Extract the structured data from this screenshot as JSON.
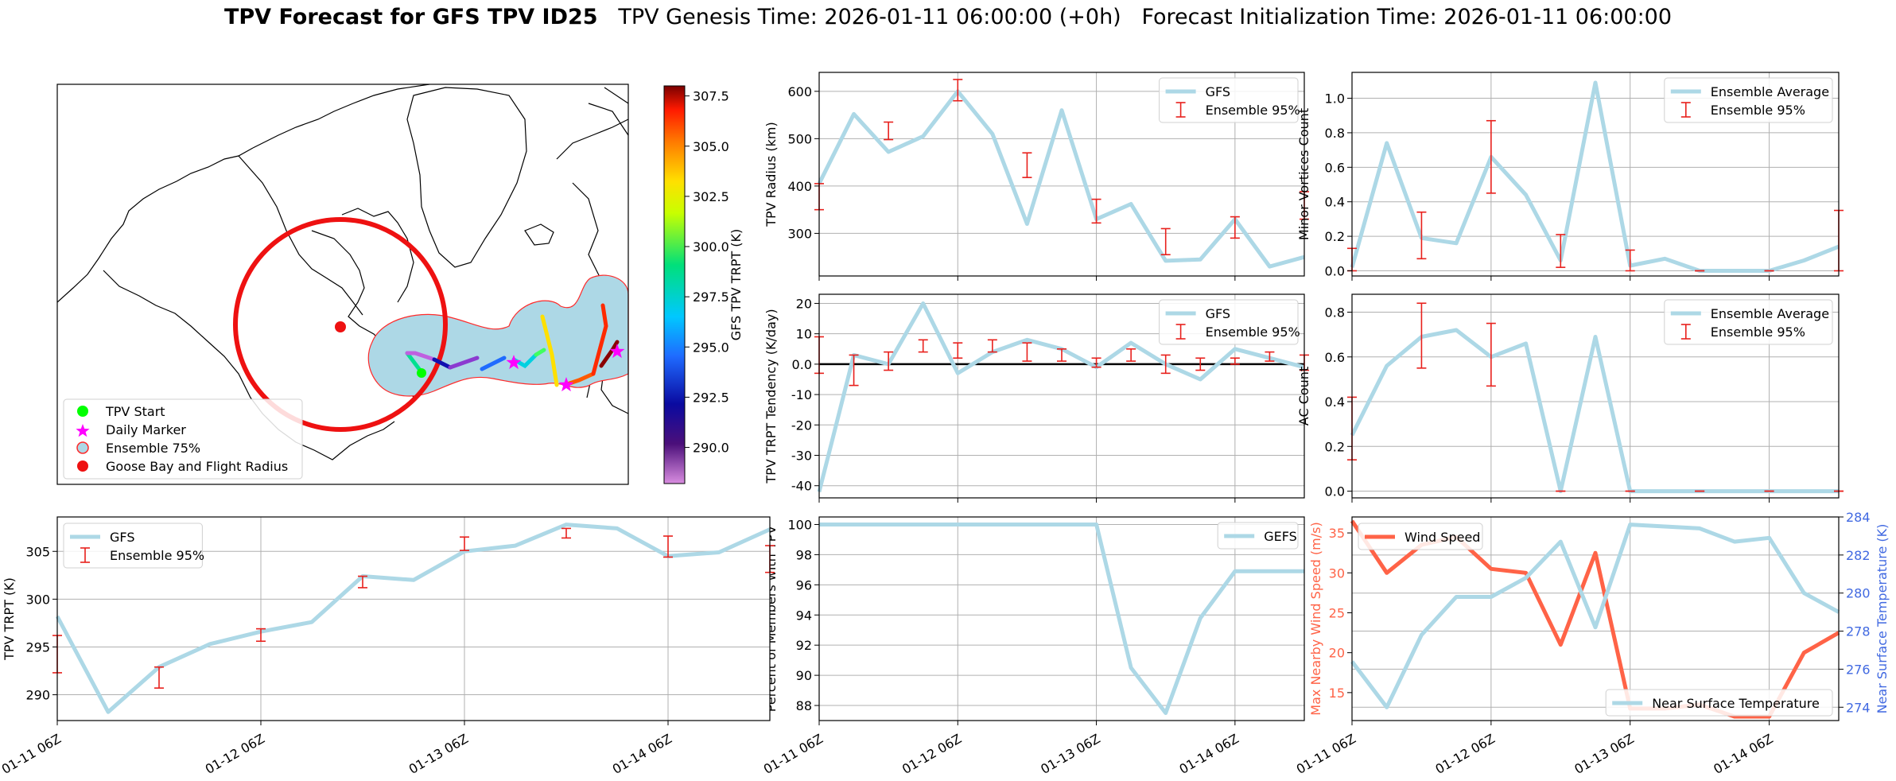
{
  "figure": {
    "title_bold": "TPV Forecast for GFS TPV ID25",
    "title_rest": "   TPV Genesis Time: 2026-01-11 06:00:00 (+0h)   Forecast Initialization Time: 2026-01-11 06:00:00"
  },
  "map": {
    "legend": [
      "TPV Start",
      "Daily Marker",
      "Ensemble 75%",
      "Goose Bay and Flight Radius"
    ],
    "colorbar": {
      "label": "GFS TPV TRPT (K)",
      "ticks": [
        290.0,
        292.5,
        295.0,
        297.5,
        300.0,
        302.5,
        305.0,
        307.5
      ],
      "vmin": 288.2,
      "vmax": 308.0
    },
    "colors": {
      "start": "#00ff00",
      "daily": "#ff00ff",
      "ensemble_fill": "#add8e6",
      "ensemble_edge": "#ff2a2a",
      "goose_bay": "#ee1111"
    }
  },
  "chart_data": [
    {
      "id": "radius",
      "type": "line",
      "ylabel": "TPV Radius (km)",
      "x": [
        0,
        0.25,
        0.5,
        0.75,
        1,
        1.25,
        1.5,
        1.75,
        2,
        2.25,
        2.5,
        2.75,
        3,
        3.25,
        3.5
      ],
      "series": [
        {
          "name": "GFS",
          "values": [
            405,
            552,
            472,
            505,
            600,
            510,
            320,
            560,
            330,
            362,
            242,
            245,
            330,
            230,
            250
          ]
        }
      ],
      "errorbars": {
        "name": "Ensemble 95%",
        "x": [
          0,
          0.5,
          1,
          1.5,
          2,
          2.5,
          3,
          3.5
        ],
        "low": [
          350,
          498,
          580,
          418,
          322,
          255,
          290,
          330
        ],
        "high": [
          405,
          535,
          625,
          470,
          372,
          310,
          335,
          388
        ]
      },
      "ylim": [
        210,
        640
      ],
      "yticks": [
        300,
        400,
        500,
        600
      ],
      "ygrid": [
        300,
        400,
        500,
        600
      ],
      "xlim": [
        0,
        3.5
      ],
      "legend": "upper right"
    },
    {
      "id": "tendency",
      "type": "line",
      "ylabel": "TPV TRPT Tendency (K/day)",
      "x": [
        0,
        0.25,
        0.5,
        0.75,
        1,
        1.25,
        1.5,
        1.75,
        2,
        2.25,
        2.5,
        2.75,
        3,
        3.25,
        3.5
      ],
      "series": [
        {
          "name": "GFS",
          "values": [
            -42,
            3,
            0,
            20,
            -3,
            4,
            8,
            5,
            -1,
            7,
            0,
            -5,
            5,
            2,
            -1
          ]
        }
      ],
      "errorbars": {
        "name": "Ensemble 95%",
        "x": [
          0,
          0.25,
          0.5,
          0.75,
          1,
          1.25,
          1.5,
          1.75,
          2,
          2.25,
          2.5,
          2.75,
          3,
          3.25,
          3.5
        ],
        "low": [
          -3,
          -7,
          -2,
          4,
          2,
          4,
          1,
          1,
          -1,
          1,
          -3,
          -2,
          0,
          1,
          -2
        ],
        "high": [
          9,
          3,
          4,
          8,
          7,
          8,
          7,
          5,
          2,
          5,
          3,
          2,
          2,
          4,
          3
        ]
      },
      "ylim": [
        -44,
        23
      ],
      "yticks": [
        -40,
        -30,
        -20,
        -10,
        0,
        10,
        20
      ],
      "ygrid": [
        -40,
        -30,
        -20,
        -10,
        0,
        10,
        20
      ],
      "zero_line": true,
      "xlim": [
        0,
        3.5
      ],
      "legend": "upper right"
    },
    {
      "id": "members",
      "type": "line",
      "ylabel": "Percent of Members with TPV",
      "x": [
        0,
        0.25,
        0.5,
        0.75,
        1,
        1.25,
        1.5,
        1.75,
        2,
        2.25,
        2.5,
        2.75,
        3,
        3.25,
        3.5
      ],
      "series": [
        {
          "name": "GEFS",
          "values": [
            100,
            100,
            100,
            100,
            100,
            100,
            100,
            100,
            100,
            90.5,
            87.5,
            93.8,
            96.9,
            96.9,
            96.9
          ]
        }
      ],
      "ylim": [
        87,
        100.5
      ],
      "yticks": [
        88,
        90,
        92,
        94,
        96,
        98,
        100
      ],
      "ygrid": [
        88,
        90,
        92,
        94,
        96,
        98,
        100
      ],
      "xlim": [
        0,
        3.5
      ],
      "xticks": [
        "01-11 06Z",
        "01-12 06Z",
        "01-13 06Z",
        "01-14 06Z"
      ],
      "legend": "upper right"
    },
    {
      "id": "minor",
      "type": "line",
      "ylabel": "Minor Vortices Count",
      "x": [
        0,
        0.25,
        0.5,
        0.75,
        1,
        1.25,
        1.5,
        1.75,
        2,
        2.25,
        2.5,
        2.75,
        3,
        3.25,
        3.5
      ],
      "series": [
        {
          "name": "Ensemble Average",
          "values": [
            0.02,
            0.74,
            0.19,
            0.16,
            0.66,
            0.44,
            0.06,
            1.09,
            0.03,
            0.07,
            0,
            0,
            0,
            0.06,
            0.14
          ]
        }
      ],
      "errorbars": {
        "name": "Ensemble 95%",
        "x": [
          0,
          0.5,
          1,
          1.5,
          2,
          2.5,
          3,
          3.5
        ],
        "low": [
          0,
          0.07,
          0.45,
          0.02,
          0,
          0,
          0,
          0
        ],
        "high": [
          0.13,
          0.34,
          0.87,
          0.21,
          0.12,
          0,
          0,
          0.35
        ]
      },
      "ylim": [
        -0.03,
        1.15
      ],
      "yticks": [
        0,
        0.2,
        0.4,
        0.6,
        0.8,
        1.0
      ],
      "ygrid": [
        0,
        0.2,
        0.4,
        0.6,
        0.8,
        1.0
      ],
      "xlim": [
        0,
        3.5
      ],
      "legend": "upper right"
    },
    {
      "id": "ac",
      "type": "line",
      "ylabel": "AC Count",
      "x": [
        0,
        0.25,
        0.5,
        0.75,
        1,
        1.25,
        1.5,
        1.75,
        2,
        2.25,
        2.5,
        2.75,
        3,
        3.25,
        3.5
      ],
      "series": [
        {
          "name": "Ensemble Average",
          "values": [
            0.25,
            0.56,
            0.69,
            0.72,
            0.6,
            0.66,
            0,
            0.69,
            0,
            0,
            0,
            0,
            0,
            0,
            0
          ]
        }
      ],
      "errorbars": {
        "name": "Ensemble 95%",
        "x": [
          0,
          0.5,
          1,
          1.5,
          2,
          2.5,
          3,
          3.5
        ],
        "low": [
          0.14,
          0.55,
          0.47,
          0,
          0,
          0,
          0,
          0
        ],
        "high": [
          0.42,
          0.84,
          0.75,
          0,
          0,
          0,
          0,
          0
        ]
      },
      "ylim": [
        -0.03,
        0.88
      ],
      "yticks": [
        0,
        0.2,
        0.4,
        0.6,
        0.8
      ],
      "ygrid": [
        0,
        0.2,
        0.4,
        0.6,
        0.8
      ],
      "xlim": [
        0,
        3.5
      ],
      "legend": "upper right"
    },
    {
      "id": "wind",
      "type": "line",
      "ylabel": "Max Nearby Wind Speed (m/s)",
      "ylabel2": "Near Surface Temperature (K)",
      "x": [
        0,
        0.25,
        0.5,
        0.75,
        1,
        1.25,
        1.5,
        1.75,
        2,
        2.25,
        2.5,
        2.75,
        3,
        3.25,
        3.5
      ],
      "series": [
        {
          "name": "Wind Speed",
          "axis": "left",
          "values": [
            36.5,
            30,
            33.5,
            34.5,
            30.5,
            30,
            21,
            32.5,
            13,
            13,
            13.5,
            12,
            12,
            20,
            22.5
          ]
        },
        {
          "name": "Near Surface Temperature",
          "axis": "right",
          "values": [
            276.4,
            274.0,
            277.8,
            279.8,
            279.8,
            280.8,
            282.7,
            278.2,
            283.6,
            283.5,
            283.4,
            282.7,
            282.9,
            280.0,
            279.0
          ]
        }
      ],
      "ylim": [
        11.5,
        37
      ],
      "yticks": [
        15,
        20,
        25,
        30,
        35
      ],
      "ylim2": [
        273.3,
        284
      ],
      "yticks2": [
        274,
        276,
        278,
        280,
        282,
        284
      ],
      "ygrid": [
        274,
        276,
        278,
        280,
        282,
        284
      ],
      "xlim": [
        0,
        3.5
      ],
      "xticks": [
        "01-11 06Z",
        "01-12 06Z",
        "01-13 06Z",
        "01-14 06Z"
      ],
      "colors": {
        "wind": "#ff6347",
        "temp": "#add8e6",
        "left_axis": "#ff6347",
        "right_axis": "#4169e1"
      }
    },
    {
      "id": "trpt",
      "type": "line",
      "ylabel": "TPV TRPT (K)",
      "x": [
        0,
        0.25,
        0.5,
        0.75,
        1,
        1.25,
        1.5,
        1.75,
        2,
        2.25,
        2.5,
        2.75,
        3,
        3.25,
        3.5
      ],
      "series": [
        {
          "name": "GFS",
          "values": [
            298.2,
            288.2,
            292.9,
            295.3,
            296.6,
            297.6,
            302.4,
            302.0,
            305.0,
            305.6,
            307.8,
            307.4,
            304.5,
            304.9,
            307.3
          ]
        }
      ],
      "errorbars": {
        "name": "Ensemble 95%",
        "x": [
          0,
          0.5,
          1,
          1.5,
          2,
          2.5,
          3,
          3.5
        ],
        "low": [
          292.3,
          290.7,
          295.6,
          301.2,
          305.1,
          306.4,
          304.4,
          302.8
        ],
        "high": [
          296.2,
          292.9,
          296.9,
          302.4,
          306.5,
          307.4,
          306.6,
          305.6
        ]
      },
      "ylim": [
        287.3,
        308.6
      ],
      "yticks": [
        290,
        295,
        300,
        305
      ],
      "ygrid": [
        290,
        295,
        300,
        305
      ],
      "xlim": [
        0,
        3.5
      ],
      "xticks": [
        "01-11 06Z",
        "01-12 06Z",
        "01-13 06Z",
        "01-14 06Z"
      ],
      "legend": "upper left"
    }
  ]
}
